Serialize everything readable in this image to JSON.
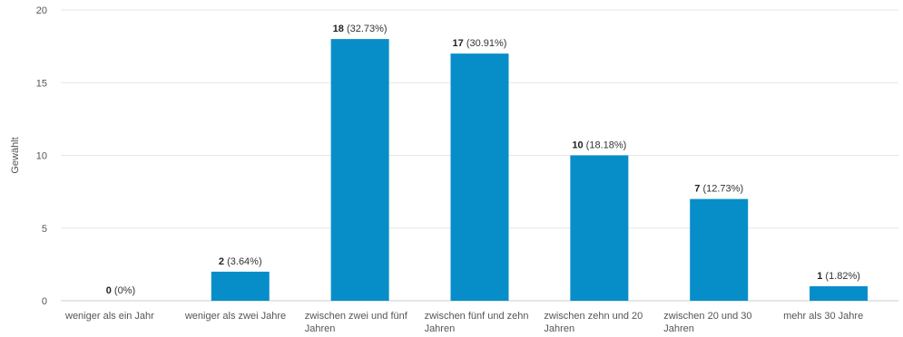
{
  "chart_data": {
    "type": "bar",
    "ylabel": "Gewählt",
    "xlabel": "",
    "ylim": [
      0,
      20
    ],
    "yticks": [
      0,
      5,
      10,
      15,
      20
    ],
    "grid": true,
    "bar_color": "#078ec9",
    "categories": [
      [
        "weniger als ein Jahr"
      ],
      [
        "weniger als zwei Jahre"
      ],
      [
        "zwischen zwei und fünf",
        "Jahren"
      ],
      [
        "zwischen fünf und zehn",
        "Jahren"
      ],
      [
        "zwischen zehn und 20",
        "Jahren"
      ],
      [
        "zwischen 20 und 30",
        "Jahren"
      ],
      [
        "mehr als 30 Jahre"
      ]
    ],
    "values": [
      0,
      2,
      18,
      17,
      10,
      7,
      1
    ],
    "percent_labels": [
      "(0%)",
      "(3.64%)",
      "(32.73%)",
      "(30.91%)",
      "(18.18%)",
      "(12.73%)",
      "(1.82%)"
    ]
  }
}
